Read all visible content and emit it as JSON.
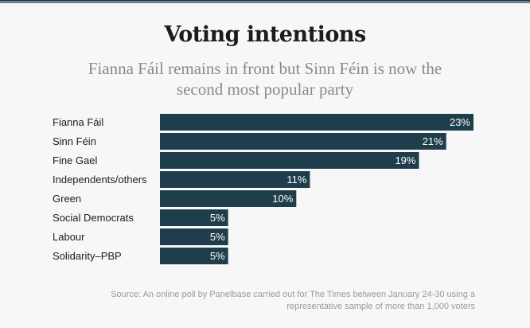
{
  "title": "Voting intentions",
  "subtitle": "Fianna Fáil remains in front but Sinn Féin is now the second most popular party",
  "source": "Source: An online poll by Panelbase carried out for The Times between January 24-30 using a representative sample of more than 1,000 voters",
  "colors": {
    "bar": "#1f3e4c",
    "label": "#1c1c1c",
    "value": "#ffffff"
  },
  "chart_data": {
    "type": "bar",
    "orientation": "horizontal",
    "title": "Voting intentions",
    "subtitle": "Fianna Fáil remains in front but Sinn Féin is now the second most popular party",
    "categories": [
      "Fianna Fáil",
      "Sinn Féin",
      "Fine Gael",
      "Independents/others",
      "Green",
      "Social Democrats",
      "Labour",
      "Solidarity–PBP"
    ],
    "values": [
      23,
      21,
      19,
      11,
      10,
      5,
      5,
      5
    ],
    "value_labels": [
      "23%",
      "21%",
      "19%",
      "11%",
      "10%",
      "5%",
      "5%",
      "5%"
    ],
    "unit": "%",
    "xlim": [
      0,
      23
    ],
    "grid": false
  }
}
